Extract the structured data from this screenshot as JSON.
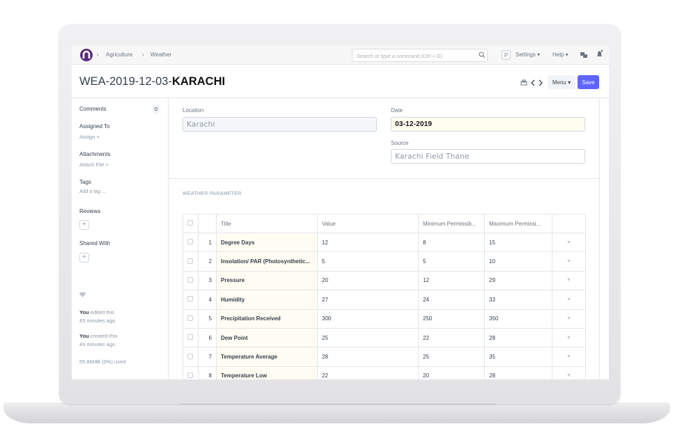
{
  "navbar": {
    "breadcrumbs": [
      "Agriculture",
      "Weather"
    ],
    "search_placeholder": "Search or type a command (Ctrl + G)",
    "avatar": "P",
    "menus": [
      "Settings",
      "Help"
    ]
  },
  "header": {
    "title_prefix": "WEA-2019-12-03-",
    "title_name": "KARACHI",
    "menu_button": "Menu",
    "save_button": "Save"
  },
  "sidebar": {
    "comments": {
      "label": "Comments",
      "count": 0
    },
    "assigned_to": {
      "label": "Assigned To",
      "action": "Assign"
    },
    "attachments": {
      "label": "Attachments",
      "action": "Attach File"
    },
    "tags": {
      "label": "Tags",
      "action": "Add a tag ..."
    },
    "reviews": {
      "label": "Reviews"
    },
    "shared_with": {
      "label": "Shared With"
    },
    "activity": [
      {
        "user": "You",
        "action": "edited this",
        "time": "43 minutes ago"
      },
      {
        "user": "You",
        "action": "created this",
        "time": "43 minutes ago"
      }
    ],
    "storage": "55.86MB (0%) used"
  },
  "form": {
    "location": {
      "label": "Location",
      "value": "Karachi"
    },
    "date": {
      "label": "Date",
      "value": "03-12-2019"
    },
    "source": {
      "label": "Source",
      "value": "Karachi Field Thane"
    },
    "section_title": "WEATHER PARAMETER"
  },
  "table": {
    "columns": [
      "Title",
      "Value",
      "Minimum Permissib...",
      "Maximum Permissi..."
    ],
    "rows": [
      [
        1,
        "Degree Days",
        12,
        8,
        15
      ],
      [
        2,
        "Insolation/ PAR (Photosynthetic...",
        5,
        5,
        10
      ],
      [
        3,
        "Pressure",
        20,
        12,
        29
      ],
      [
        4,
        "Humidity",
        27,
        24,
        33
      ],
      [
        5,
        "Precipitation Received",
        300,
        250,
        350
      ],
      [
        6,
        "Dew Point",
        25,
        22,
        28
      ],
      [
        7,
        "Temperature Average",
        28,
        25,
        35
      ],
      [
        8,
        "Temperature Low",
        22,
        20,
        28
      ]
    ]
  }
}
